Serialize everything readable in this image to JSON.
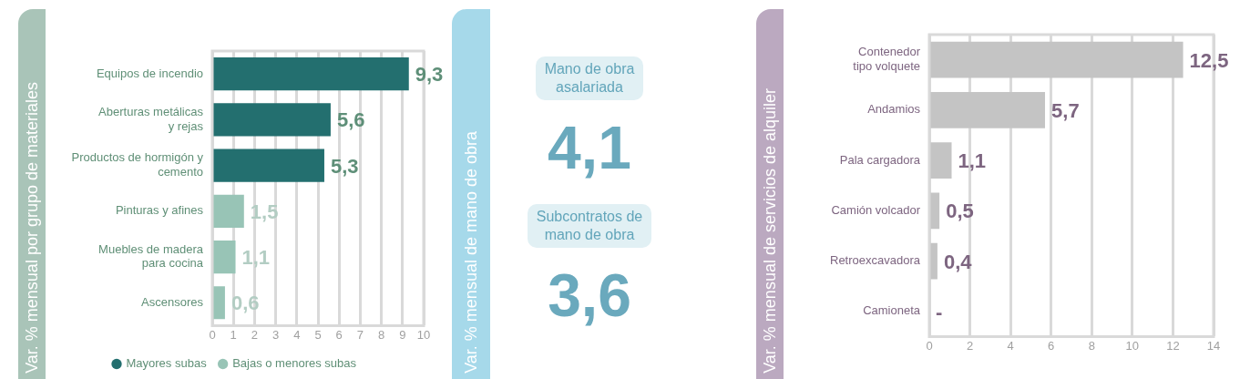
{
  "chart_data": [
    {
      "type": "bar",
      "orientation": "horizontal",
      "stacked": true,
      "ylabel": "Var. % mensual por grupo de materiales",
      "categories": [
        "Equipos de incendio",
        "Aberturas metálicas\ny rejas",
        "Productos de hormigón y\ncemento",
        "Pinturas y afines",
        "Muebles de madera\npara cocina",
        "Ascensores"
      ],
      "series": [
        {
          "name": "Mayores subas",
          "color": "#236f6f",
          "values": [
            9.3,
            5.6,
            5.3,
            null,
            null,
            null
          ],
          "value_labels": [
            "9,3",
            "5,6",
            "5,3",
            null,
            null,
            null
          ]
        },
        {
          "name": "Bajas o menores subas",
          "color": "#98c4b6",
          "values": [
            null,
            null,
            null,
            1.5,
            1.1,
            0.6
          ],
          "value_labels": [
            null,
            null,
            null,
            "1,5",
            "1,1",
            "0,6"
          ]
        }
      ],
      "xlim": [
        0,
        10
      ],
      "xticks": [
        0,
        1,
        2,
        3,
        4,
        5,
        6,
        7,
        8,
        9,
        10
      ],
      "grid": "x",
      "legend": "bottom"
    },
    {
      "type": "other",
      "ylabel": "Var. % mensual de mano de obra",
      "categories": [
        "Mano de obra\nasalariada",
        "Subcontratos de\nmano de obra"
      ],
      "values": [
        4.1,
        3.6
      ],
      "value_labels": [
        "4,1",
        "3,6"
      ]
    },
    {
      "type": "bar",
      "orientation": "horizontal",
      "ylabel": "Var. % mensual de servicios de alquiler",
      "categories": [
        "Contenedor\ntipo volquete",
        "Andamios",
        "Pala cargadora",
        "Camión volcador",
        "Retroexcavadora",
        "Camioneta"
      ],
      "values": [
        12.5,
        5.7,
        1.1,
        0.5,
        0.4,
        null
      ],
      "color": "#c4c4c4",
      "value_labels": [
        "12,5",
        "5,7",
        "1,1",
        "0,5",
        "0,4",
        "-"
      ],
      "xlim": [
        0,
        14
      ],
      "xticks": [
        0,
        2,
        4,
        6,
        8,
        10,
        12,
        14
      ],
      "grid": "x"
    }
  ]
}
